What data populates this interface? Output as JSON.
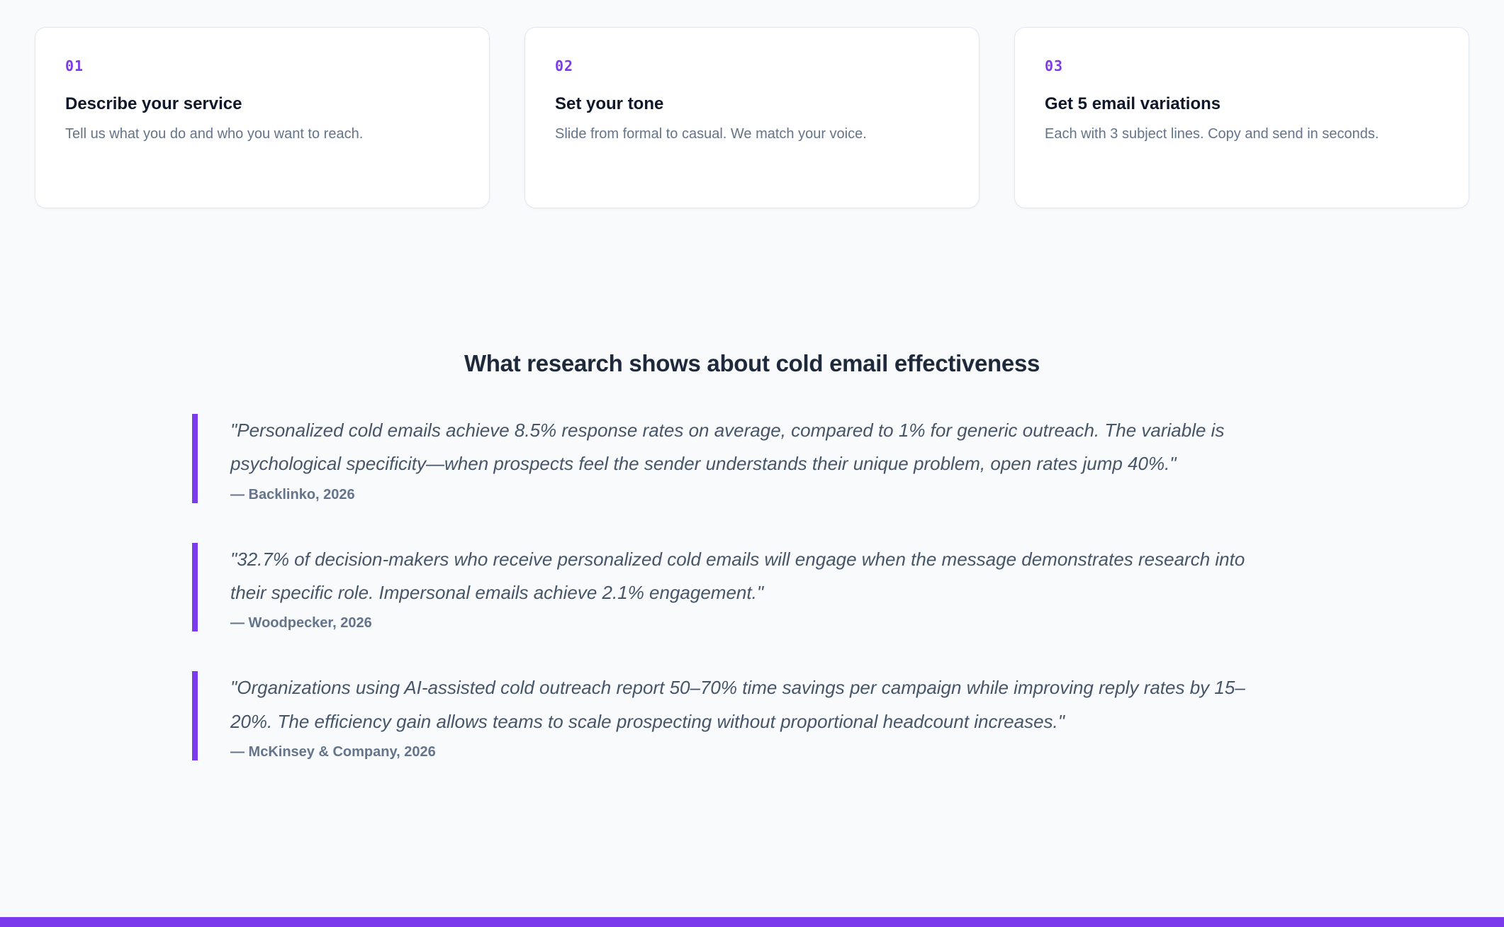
{
  "theme": {
    "accent": "#7c3aed",
    "background": "#f8fafc",
    "card_background": "#ffffff",
    "card_border": "#e2e8f0"
  },
  "steps": [
    {
      "number": "01",
      "title": "Describe your service",
      "description": "Tell us what you do and who you want to reach."
    },
    {
      "number": "02",
      "title": "Set your tone",
      "description": "Slide from formal to casual. We match your voice."
    },
    {
      "number": "03",
      "title": "Get 5 email variations",
      "description": "Each with 3 subject lines. Copy and send in seconds."
    }
  ],
  "research": {
    "heading": "What research shows about cold email effectiveness",
    "quotes": [
      {
        "text": "\"Personalized cold emails achieve 8.5% response rates on average, compared to 1% for generic outreach. The variable is psychological specificity—when prospects feel the sender understands their unique problem, open rates jump 40%.\"",
        "attribution": "— Backlinko, 2026"
      },
      {
        "text": "\"32.7% of decision-makers who receive personalized cold emails will engage when the message demonstrates research into their specific role. Impersonal emails achieve 2.1% engagement.\"",
        "attribution": "— Woodpecker, 2026"
      },
      {
        "text": "\"Organizations using AI-assisted cold outreach report 50–70% time savings per campaign while improving reply rates by 15–20%. The efficiency gain allows teams to scale prospecting without proportional headcount increases.\"",
        "attribution": "— McKinsey & Company, 2026"
      }
    ]
  }
}
